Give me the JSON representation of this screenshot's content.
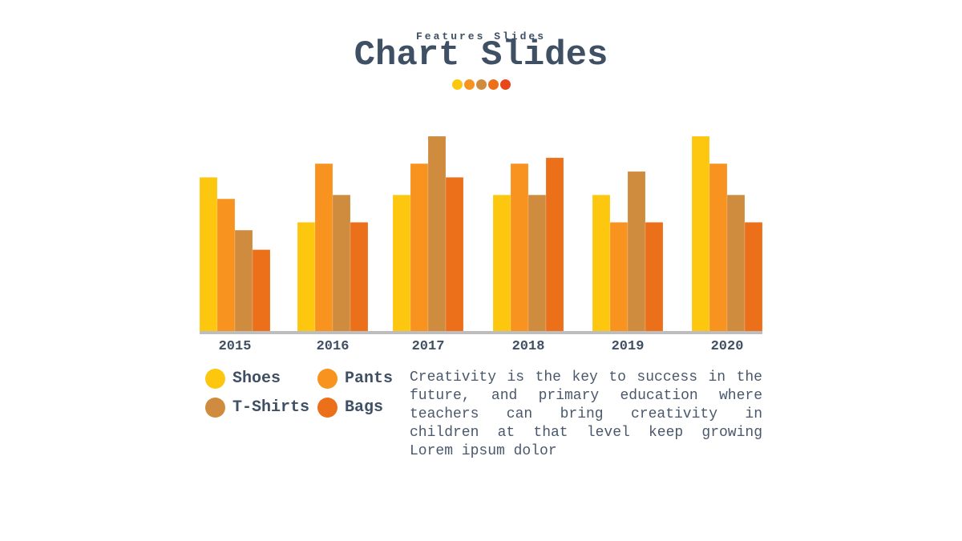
{
  "header": {
    "subtitle": "Features Slides",
    "title": "Chart Slides",
    "dots": [
      "#fcc70f",
      "#f7931e",
      "#cf8b3e",
      "#ec6f1a",
      "#e8471b"
    ]
  },
  "chart_data": {
    "type": "bar",
    "categories": [
      "2015",
      "2016",
      "2017",
      "2018",
      "2019",
      "2020"
    ],
    "series": [
      {
        "name": "Shoes",
        "color": "#fdc70f",
        "values": [
          79,
          56,
          70,
          70,
          70,
          100
        ]
      },
      {
        "name": "Pants",
        "color": "#f7931e",
        "values": [
          68,
          86,
          86,
          86,
          56,
          86
        ]
      },
      {
        "name": "T-Shirts",
        "color": "#cf8b3e",
        "values": [
          52,
          70,
          100,
          70,
          82,
          70
        ]
      },
      {
        "name": "Bags",
        "color": "#ec6f1a",
        "values": [
          42,
          56,
          79,
          89,
          56,
          56
        ]
      }
    ],
    "ylim": [
      0,
      100
    ],
    "xlabel": "",
    "ylabel": "",
    "legend": "bottom-left",
    "grid": false
  },
  "legend": [
    {
      "label": "Shoes",
      "color": "#fdc70f"
    },
    {
      "label": "Pants",
      "color": "#f7931e"
    },
    {
      "label": "T-Shirts",
      "color": "#cf8b3e"
    },
    {
      "label": "Bags",
      "color": "#ec6f1a"
    }
  ],
  "description": "Creativity is the key to success in the future, and primary education where teachers can bring creativity in children at that level keep growing Lorem ipsum dolor"
}
